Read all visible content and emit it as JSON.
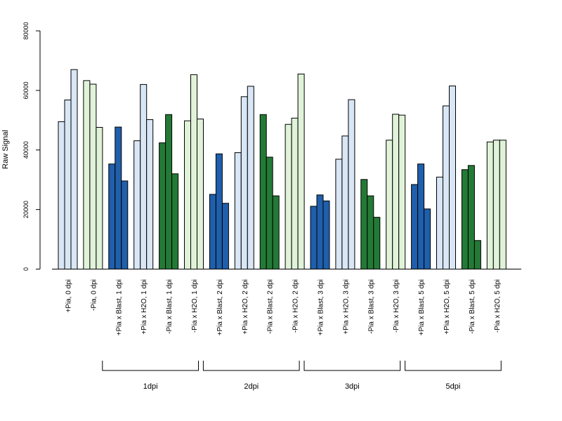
{
  "chart_data": {
    "type": "bar",
    "ylabel": "Raw Signal",
    "ylim": [
      0,
      80000
    ],
    "yticks": [
      "0",
      "20000",
      "40000",
      "60000",
      "80000"
    ],
    "grid": false,
    "colors": {
      "light_blue": "#d8e6f5",
      "light_green": "#e0f3d9",
      "dark_blue": "#1f5fab",
      "dark_green": "#237a36",
      "stroke": "#000000"
    },
    "categories": [
      {
        "label": "+Pia, 0 dpi",
        "color": "light_blue",
        "values": [
          49500,
          56800,
          67000
        ]
      },
      {
        "label": "-Pia, 0 dpi",
        "color": "light_green",
        "values": [
          63300,
          62100,
          47600
        ]
      },
      {
        "label": "+Pia x Blast, 1 dpi",
        "color": "dark_blue",
        "values": [
          35300,
          47700,
          29600
        ]
      },
      {
        "label": "+Pia x H2O, 1 dpi",
        "color": "light_blue",
        "values": [
          43100,
          62000,
          50200
        ]
      },
      {
        "label": "-Pia x Blast, 1 dpi",
        "color": "dark_green",
        "values": [
          42400,
          51900,
          32000
        ]
      },
      {
        "label": "-Pia x H2O, 1 dpi",
        "color": "light_green",
        "values": [
          49800,
          65300,
          50400
        ]
      },
      {
        "label": "+Pia x Blast, 2 dpi",
        "color": "dark_blue",
        "values": [
          25100,
          38700,
          22100
        ]
      },
      {
        "label": "+Pia x H2O, 2 dpi",
        "color": "light_blue",
        "values": [
          39100,
          57900,
          61400
        ]
      },
      {
        "label": "-Pia x Blast, 2 dpi",
        "color": "dark_green",
        "values": [
          51900,
          37600,
          24600
        ]
      },
      {
        "label": "-Pia x H2O, 2 dpi",
        "color": "light_green",
        "values": [
          48600,
          50700,
          65500
        ]
      },
      {
        "label": "+Pia x Blast, 3 dpi",
        "color": "dark_blue",
        "values": [
          21100,
          24900,
          22900
        ]
      },
      {
        "label": "+Pia x H2O, 3 dpi",
        "color": "light_blue",
        "values": [
          36900,
          44700,
          56900
        ]
      },
      {
        "label": "-Pia x Blast, 3 dpi",
        "color": "dark_green",
        "values": [
          30100,
          24600,
          17400
        ]
      },
      {
        "label": "-Pia x H2O, 3 dpi",
        "color": "light_green",
        "values": [
          43300,
          52000,
          51700
        ]
      },
      {
        "label": "+Pia x Blast, 5 dpi",
        "color": "dark_blue",
        "values": [
          28400,
          35300,
          20200
        ]
      },
      {
        "label": "+Pia x H2O, 5 dpi",
        "color": "light_blue",
        "values": [
          30900,
          54800,
          61500
        ]
      },
      {
        "label": "-Pia x Blast, 5 dpi",
        "color": "dark_green",
        "values": [
          33400,
          34800,
          9600
        ]
      },
      {
        "label": "-Pia x H2O, 5 dpi",
        "color": "light_green",
        "values": [
          42700,
          43300,
          43300
        ]
      }
    ],
    "groups": [
      {
        "label": "1dpi",
        "from": 2,
        "to": 5
      },
      {
        "label": "2dpi",
        "from": 6,
        "to": 9
      },
      {
        "label": "3dpi",
        "from": 10,
        "to": 13
      },
      {
        "label": "5dpi",
        "from": 14,
        "to": 17
      }
    ]
  }
}
